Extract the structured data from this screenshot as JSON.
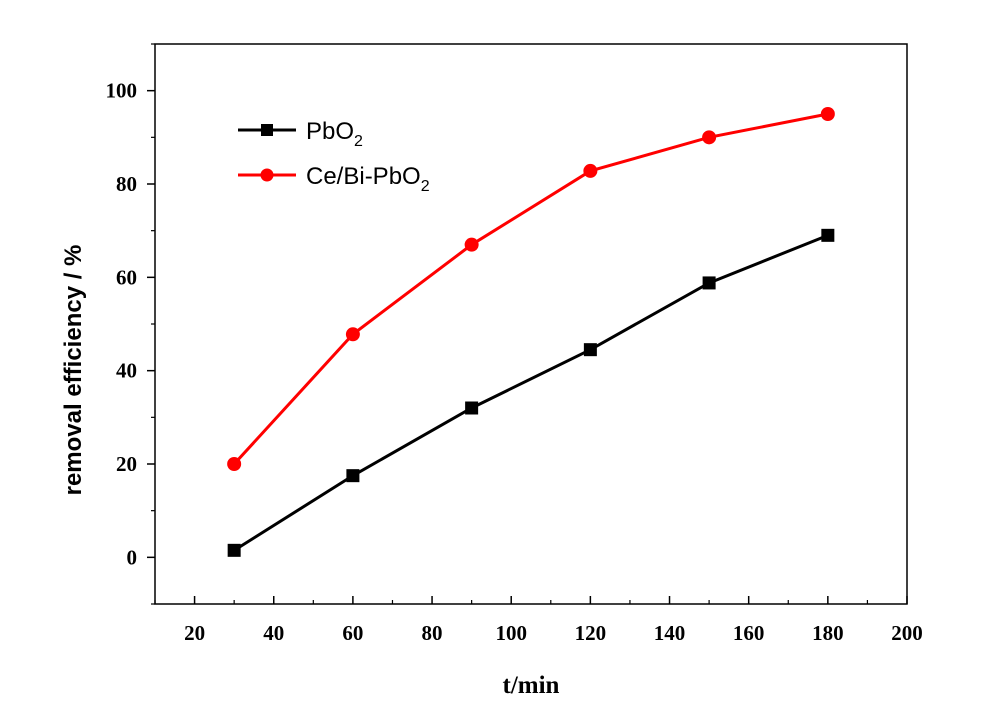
{
  "chart_data": {
    "type": "line",
    "title": "",
    "xlabel": "t/min",
    "ylabel": "removal efficiency / %",
    "xlim": [
      10,
      200
    ],
    "ylim": [
      -10,
      110
    ],
    "xticks": [
      20,
      40,
      60,
      80,
      100,
      120,
      140,
      160,
      180,
      200
    ],
    "yticks": [
      0,
      20,
      40,
      60,
      80,
      100
    ],
    "legend_position": "top-left",
    "series": [
      {
        "name": "PbO",
        "subscript": "2",
        "color": "#000000",
        "marker": "square",
        "x": [
          30,
          60,
          90,
          120,
          150,
          180
        ],
        "values": [
          1.5,
          17.5,
          32,
          44.5,
          58.8,
          69
        ]
      },
      {
        "name": "Ce/Bi-PbO",
        "subscript": "2",
        "color": "#ff0000",
        "marker": "circle",
        "x": [
          30,
          60,
          90,
          120,
          150,
          180
        ],
        "values": [
          20,
          47.8,
          67,
          82.8,
          90,
          95
        ]
      }
    ]
  }
}
